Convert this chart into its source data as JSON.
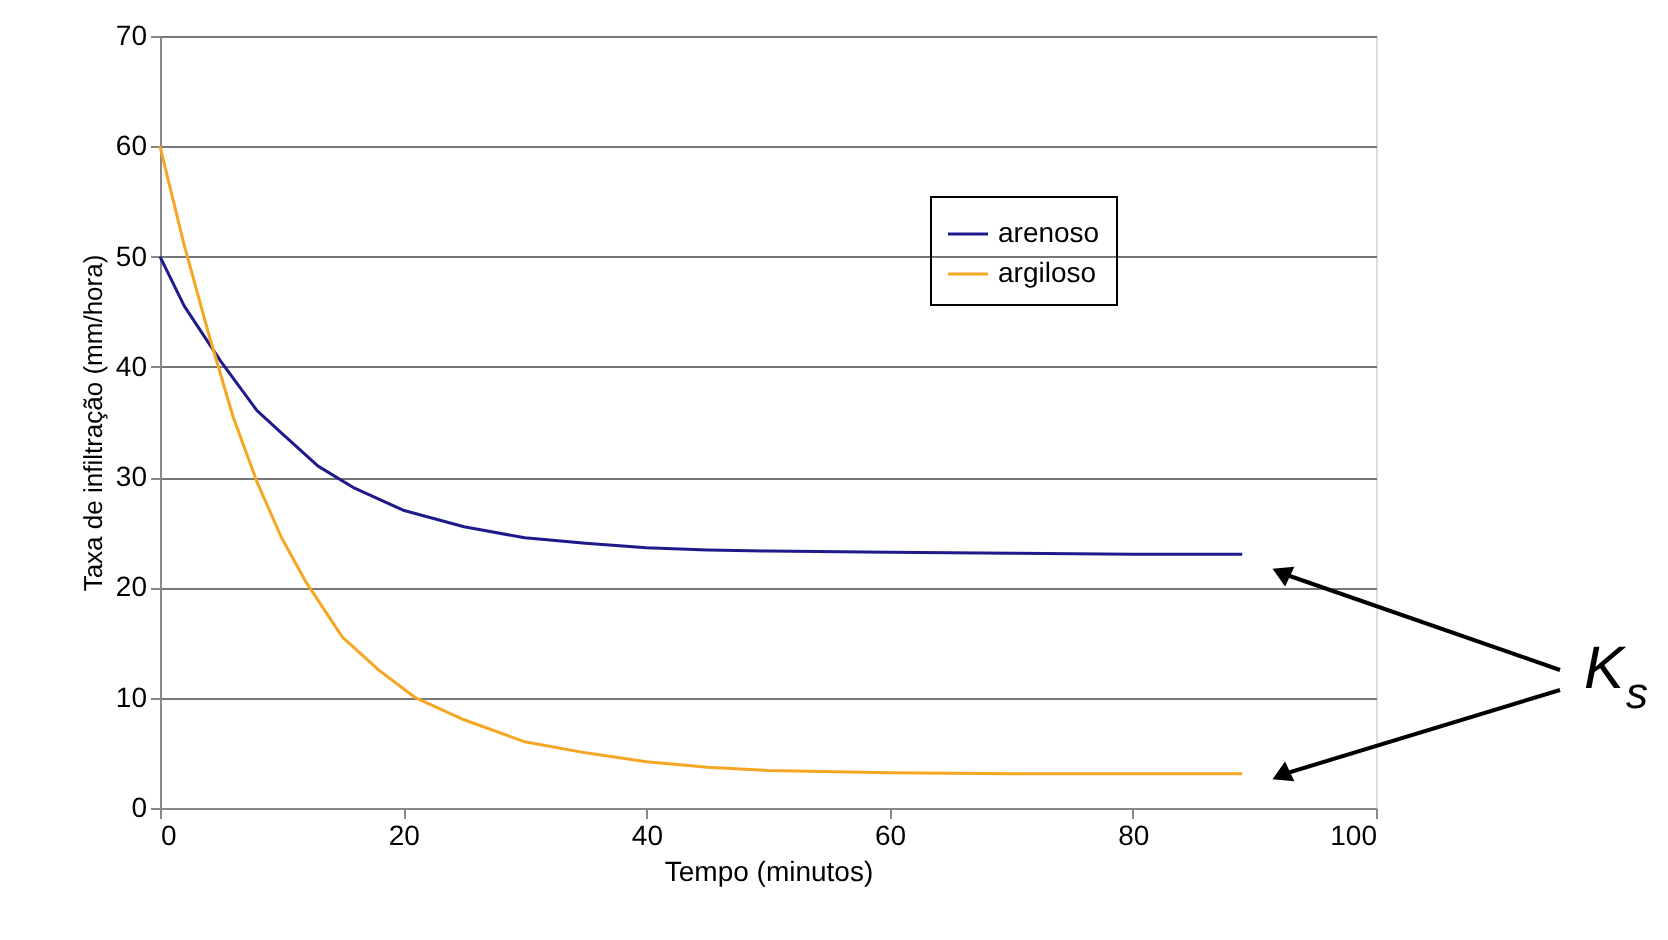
{
  "chart_data": {
    "type": "line",
    "xlabel": "Tempo (minutos)",
    "ylabel": "Taxa de infiltração (mm/hora)",
    "xlim": [
      0,
      100
    ],
    "xticks": [
      0,
      20,
      40,
      60,
      80,
      100
    ],
    "ylim": [
      0,
      70
    ],
    "yticks": [
      0,
      10,
      20,
      30,
      40,
      50,
      60,
      70
    ],
    "grid": "y",
    "legend": "top right",
    "marker": "none",
    "line_style": "solid",
    "series": [
      {
        "name": "arenoso",
        "color": "#1f1a8c",
        "x": [
          0,
          2,
          5,
          8,
          10,
          13,
          16,
          20,
          25,
          30,
          35,
          40,
          45,
          50,
          60,
          70,
          80,
          89
        ],
        "values": [
          50,
          45.5,
          40.5,
          36,
          34,
          31,
          29,
          27,
          25.5,
          24.5,
          24,
          23.6,
          23.4,
          23.3,
          23.2,
          23.1,
          23.0,
          23.0
        ]
      },
      {
        "name": "argiloso",
        "color": "#f5a623",
        "x": [
          0,
          2,
          4,
          6,
          8,
          10,
          12,
          15,
          18,
          21,
          25,
          30,
          35,
          40,
          45,
          50,
          60,
          70,
          80,
          89
        ],
        "values": [
          60,
          51,
          43,
          35.5,
          29.5,
          24.5,
          20.5,
          15.5,
          12.5,
          10,
          8,
          6,
          5,
          4.2,
          3.7,
          3.4,
          3.2,
          3.1,
          3.1,
          3.1
        ]
      }
    ],
    "annotations": [
      "K$_{s}$"
    ]
  }
}
